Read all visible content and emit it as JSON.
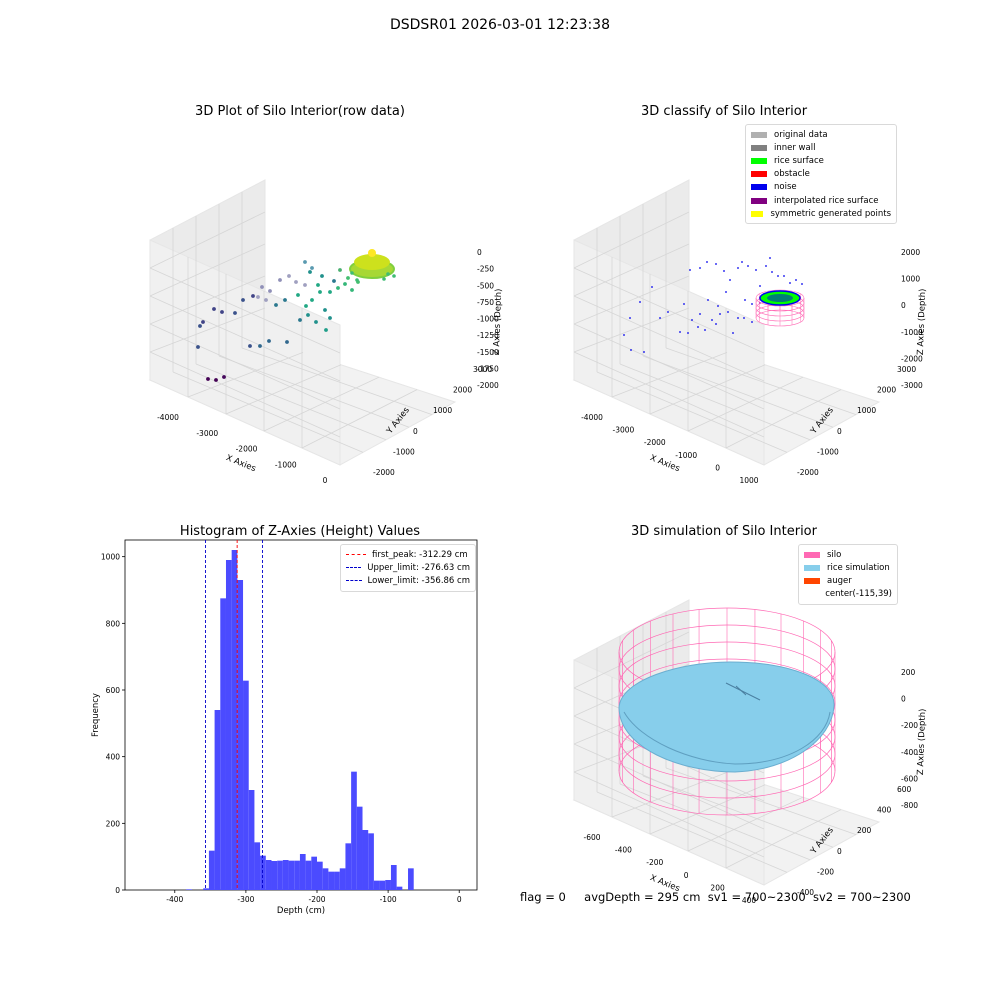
{
  "suptitle": "DSDSR01 2026-03-01 12:23:38",
  "panels": {
    "raw": {
      "title": "3D Plot of Silo Interior(row data)",
      "xlabel": "X Axies",
      "ylabel": "Y Axies",
      "zlabel": "Z Axies (Depth)",
      "xticks": [
        "-4000",
        "-3000",
        "-2000",
        "-1000",
        "0"
      ],
      "yticks": [
        "-2000",
        "-1000",
        "0",
        "1000",
        "2000",
        "3000"
      ],
      "zticks": [
        "0",
        "-250",
        "-500",
        "-750",
        "-1000",
        "-1250",
        "-1500",
        "-1750",
        "-2000"
      ]
    },
    "classify": {
      "title": "3D classify of Silo Interior",
      "xlabel": "X Axies",
      "ylabel": "Y Axies",
      "zlabel": "Z Axies (Depth)",
      "xticks": [
        "-4000",
        "-3000",
        "-2000",
        "-1000",
        "0",
        "1000"
      ],
      "yticks": [
        "-2000",
        "-1000",
        "0",
        "1000",
        "2000",
        "3000"
      ],
      "zticks": [
        "2000",
        "1000",
        "0",
        "-1000",
        "-2000",
        "-3000"
      ],
      "legend": [
        {
          "label": "original data",
          "color": "#b0b0b0"
        },
        {
          "label": "inner wall",
          "color": "#808080"
        },
        {
          "label": "rice surface",
          "color": "#00ff00"
        },
        {
          "label": "obstacle",
          "color": "#ff0000"
        },
        {
          "label": "noise",
          "color": "#0000ee"
        },
        {
          "label": "interpolated rice surface",
          "color": "#800080"
        },
        {
          "label": "symmetric generated points",
          "color": "#ffff00"
        }
      ]
    },
    "simulation": {
      "title": "3D simulation of Silo Interior",
      "xlabel": "X Axies",
      "ylabel": "Y Axies",
      "zlabel": "Z Axies (Depth)",
      "xticks": [
        "-600",
        "-400",
        "-200",
        "0",
        "200",
        "400"
      ],
      "yticks": [
        "-400",
        "-200",
        "0",
        "200",
        "400",
        "600"
      ],
      "zticks": [
        "200",
        "0",
        "-200",
        "-400",
        "-600",
        "-800"
      ],
      "legend": [
        {
          "label": "silo",
          "color": "#ff69b4"
        },
        {
          "label": "rice simulation",
          "color": "#87ceeb"
        },
        {
          "label": "auger",
          "color": "#ff4500"
        },
        {
          "label": "center(-115,39)",
          "color": ""
        }
      ]
    }
  },
  "chart_data": {
    "type": "bar",
    "title": "Histogram of Z-Axies (Height) Values",
    "xlabel": "Depth (cm)",
    "ylabel": "Frequency",
    "xlim": [
      -470,
      25
    ],
    "ylim": [
      0,
      1050
    ],
    "xticks": [
      -400,
      -300,
      -200,
      -100,
      0
    ],
    "yticks": [
      0,
      200,
      400,
      600,
      800,
      1000
    ],
    "bin_width": 8,
    "bin_starts": [
      -384,
      -360,
      -352,
      -344,
      -336,
      -328,
      -320,
      -312,
      -304,
      -296,
      -288,
      -280,
      -272,
      -264,
      -256,
      -248,
      -240,
      -232,
      -224,
      -216,
      -208,
      -200,
      -192,
      -184,
      -176,
      -168,
      -160,
      -152,
      -144,
      -136,
      -128,
      -120,
      -112,
      -104,
      -96,
      -88,
      -80,
      -72,
      -64,
      -56,
      -48,
      -40,
      -32,
      -24,
      -16,
      -8
    ],
    "values": [
      2,
      5,
      118,
      540,
      875,
      990,
      1020,
      930,
      628,
      300,
      143,
      103,
      90,
      87,
      88,
      90,
      88,
      88,
      108,
      88,
      100,
      85,
      65,
      55,
      55,
      65,
      140,
      355,
      250,
      180,
      170,
      28,
      28,
      30,
      75,
      10,
      0,
      65,
      0,
      0,
      0,
      0,
      0,
      0,
      0,
      0
    ],
    "vlines": [
      {
        "label": "first_peak: -312.29 cm",
        "x": -312.29,
        "color": "#ff0000"
      },
      {
        "label": "Upper_limit: -276.63 cm",
        "x": -276.63,
        "color": "#0000cc"
      },
      {
        "label": "Lower_limit: -356.86 cm",
        "x": -356.86,
        "color": "#0000cc"
      }
    ],
    "bar_color": "#4b4bff"
  },
  "footer": {
    "flag": "flag = 0",
    "avg": "avgDepth = 295 cm",
    "sv1": "sv1 = 700~2300",
    "sv2": "sv2 = 700~2300"
  }
}
